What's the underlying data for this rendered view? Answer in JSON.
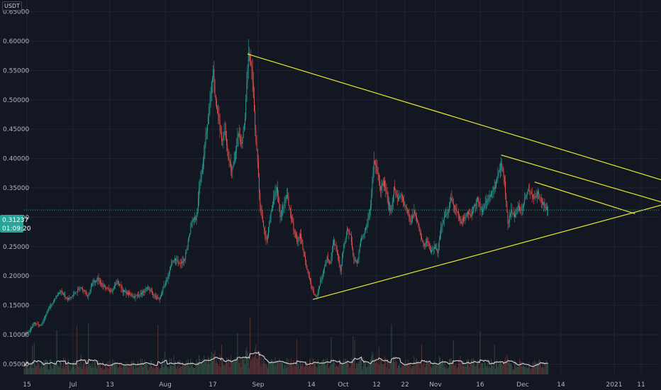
{
  "currency": {
    "top": "",
    "bottom": "USDT"
  },
  "price_badge": {
    "price": "0.31237",
    "countdown": "01:09:20"
  },
  "colors": {
    "background": "#131722",
    "grid": "#1f2433",
    "up": "#26a69a",
    "down": "#ef5350",
    "trendline": "#e6e633",
    "volume_ma": "#c9c9c9",
    "badge": "#26a69a"
  },
  "chart_data": {
    "type": "candlestick",
    "y_ticks": [
      "0.65000",
      "0.60000",
      "0.55000",
      "0.50000",
      "0.45000",
      "0.40000",
      "0.35000",
      "0.30000",
      "0.25000",
      "0.20000",
      "0.15000",
      "0.10000",
      "0.05000"
    ],
    "x_ticks": [
      "15",
      "Jul",
      "13",
      "Aug",
      "17",
      "Sep",
      "14",
      "Oct",
      "12",
      "22",
      "Nov",
      "16",
      "Dec",
      "14",
      "2021",
      "11"
    ],
    "ylim": [
      0.03,
      0.67
    ],
    "grid": true,
    "last_price": 0.31237,
    "close_path": [
      [
        0,
        0.1
      ],
      [
        6,
        0.105
      ],
      [
        12,
        0.12
      ],
      [
        20,
        0.115
      ],
      [
        28,
        0.14
      ],
      [
        36,
        0.16
      ],
      [
        44,
        0.175
      ],
      [
        52,
        0.16
      ],
      [
        60,
        0.17
      ],
      [
        68,
        0.18
      ],
      [
        76,
        0.165
      ],
      [
        82,
        0.19
      ],
      [
        88,
        0.195
      ],
      [
        96,
        0.18
      ],
      [
        104,
        0.175
      ],
      [
        112,
        0.19
      ],
      [
        118,
        0.175
      ],
      [
        124,
        0.17
      ],
      [
        132,
        0.165
      ],
      [
        140,
        0.17
      ],
      [
        148,
        0.18
      ],
      [
        156,
        0.165
      ],
      [
        162,
        0.16
      ],
      [
        166,
        0.18
      ],
      [
        170,
        0.19
      ],
      [
        176,
        0.22
      ],
      [
        180,
        0.23
      ],
      [
        186,
        0.22
      ],
      [
        192,
        0.23
      ],
      [
        196,
        0.26
      ],
      [
        200,
        0.29
      ],
      [
        206,
        0.3
      ],
      [
        210,
        0.36
      ],
      [
        214,
        0.4
      ],
      [
        218,
        0.45
      ],
      [
        222,
        0.5
      ],
      [
        226,
        0.55
      ],
      [
        228,
        0.51
      ],
      [
        232,
        0.47
      ],
      [
        236,
        0.43
      ],
      [
        240,
        0.45
      ],
      [
        244,
        0.4
      ],
      [
        248,
        0.38
      ],
      [
        252,
        0.41
      ],
      [
        256,
        0.44
      ],
      [
        260,
        0.42
      ],
      [
        264,
        0.47
      ],
      [
        266,
        0.53
      ],
      [
        268,
        0.58
      ],
      [
        272,
        0.55
      ],
      [
        274,
        0.5
      ],
      [
        276,
        0.45
      ],
      [
        280,
        0.37
      ],
      [
        282,
        0.32
      ],
      [
        286,
        0.28
      ],
      [
        290,
        0.26
      ],
      [
        294,
        0.3
      ],
      [
        298,
        0.33
      ],
      [
        302,
        0.35
      ],
      [
        306,
        0.3
      ],
      [
        310,
        0.32
      ],
      [
        314,
        0.34
      ],
      [
        318,
        0.31
      ],
      [
        322,
        0.28
      ],
      [
        326,
        0.26
      ],
      [
        330,
        0.27
      ],
      [
        334,
        0.24
      ],
      [
        338,
        0.21
      ],
      [
        342,
        0.19
      ],
      [
        346,
        0.17
      ],
      [
        350,
        0.165
      ],
      [
        354,
        0.19
      ],
      [
        358,
        0.21
      ],
      [
        362,
        0.23
      ],
      [
        366,
        0.22
      ],
      [
        370,
        0.26
      ],
      [
        374,
        0.24
      ],
      [
        378,
        0.21
      ],
      [
        382,
        0.25
      ],
      [
        386,
        0.28
      ],
      [
        390,
        0.27
      ],
      [
        394,
        0.23
      ],
      [
        398,
        0.22
      ],
      [
        402,
        0.26
      ],
      [
        406,
        0.27
      ],
      [
        410,
        0.29
      ],
      [
        414,
        0.32
      ],
      [
        418,
        0.4
      ],
      [
        422,
        0.38
      ],
      [
        426,
        0.35
      ],
      [
        430,
        0.36
      ],
      [
        434,
        0.33
      ],
      [
        438,
        0.31
      ],
      [
        442,
        0.35
      ],
      [
        446,
        0.33
      ],
      [
        450,
        0.34
      ],
      [
        454,
        0.32
      ],
      [
        458,
        0.31
      ],
      [
        462,
        0.29
      ],
      [
        466,
        0.31
      ],
      [
        470,
        0.29
      ],
      [
        474,
        0.27
      ],
      [
        478,
        0.25
      ],
      [
        482,
        0.26
      ],
      [
        486,
        0.24
      ],
      [
        490,
        0.25
      ],
      [
        494,
        0.24
      ],
      [
        498,
        0.28
      ],
      [
        502,
        0.3
      ],
      [
        506,
        0.31
      ],
      [
        510,
        0.33
      ],
      [
        514,
        0.32
      ],
      [
        518,
        0.31
      ],
      [
        522,
        0.29
      ],
      [
        526,
        0.3
      ],
      [
        530,
        0.31
      ],
      [
        534,
        0.3
      ],
      [
        538,
        0.32
      ],
      [
        542,
        0.33
      ],
      [
        546,
        0.31
      ],
      [
        550,
        0.32
      ],
      [
        554,
        0.33
      ],
      [
        558,
        0.34
      ],
      [
        562,
        0.35
      ],
      [
        566,
        0.37
      ],
      [
        570,
        0.39
      ],
      [
        574,
        0.36
      ],
      [
        578,
        0.29
      ],
      [
        582,
        0.31
      ],
      [
        586,
        0.3
      ],
      [
        590,
        0.32
      ],
      [
        594,
        0.31
      ],
      [
        598,
        0.33
      ],
      [
        602,
        0.35
      ],
      [
        606,
        0.34
      ],
      [
        610,
        0.33
      ],
      [
        614,
        0.34
      ],
      [
        618,
        0.33
      ],
      [
        622,
        0.32
      ],
      [
        626,
        0.312
      ]
    ],
    "triangle_lines": [
      {
        "from": [
          267,
          0.578
        ],
        "to": [
          814,
          0.341
        ]
      },
      {
        "from": [
          345,
          0.16
        ],
        "to": [
          814,
          0.341
        ]
      },
      {
        "from": [
          570,
          0.406
        ],
        "to": [
          766,
          0.324
        ]
      },
      {
        "from": [
          610,
          0.36
        ],
        "to": [
          730,
          0.306
        ]
      }
    ]
  }
}
